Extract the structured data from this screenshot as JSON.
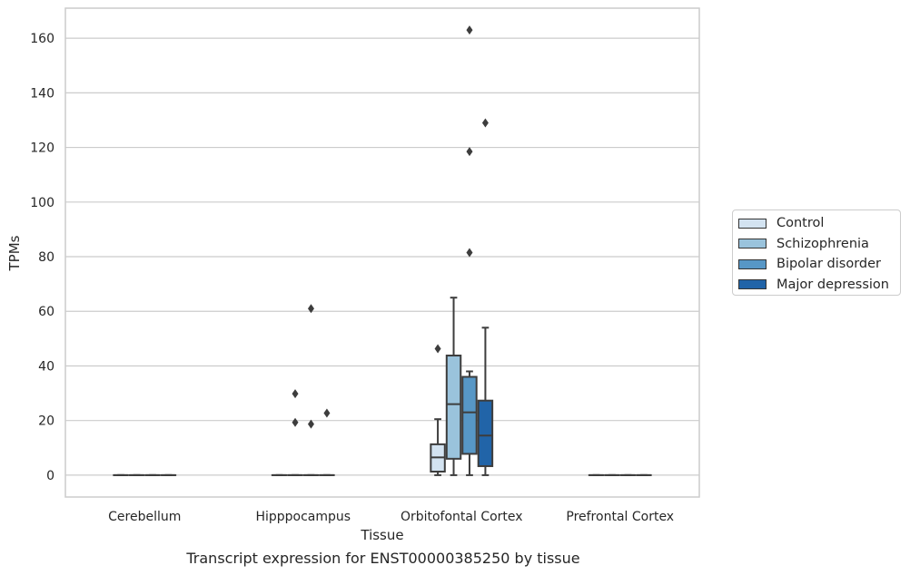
{
  "chart_data": {
    "type": "box",
    "title": "",
    "caption": "Transcript expression for ENST00000385250 by tissue",
    "xlabel": "Tissue",
    "ylabel": "TPMs",
    "ylim": [
      -8,
      171
    ],
    "yticks": [
      0,
      20,
      40,
      60,
      80,
      100,
      120,
      140,
      160
    ],
    "grid": true,
    "legend_position": "right",
    "categories": [
      "Cerebellum",
      "Hipppocampus",
      "Orbitofontal Cortex",
      "Prefrontal Cortex"
    ],
    "series": [
      {
        "name": "Control",
        "color": "#d3e3f1",
        "boxes": [
          {
            "q1": 0,
            "median": 0,
            "q3": 0,
            "whislo": 0,
            "whishi": 0,
            "fliers": []
          },
          {
            "q1": 0,
            "median": 0,
            "q3": 0,
            "whislo": 0,
            "whishi": 0,
            "fliers": []
          },
          {
            "q1": 1.3,
            "median": 6.5,
            "q3": 11.3,
            "whislo": 0,
            "whishi": 20.5,
            "fliers": [
              46.3
            ]
          },
          {
            "q1": 0,
            "median": 0,
            "q3": 0,
            "whislo": 0,
            "whishi": 0,
            "fliers": []
          }
        ]
      },
      {
        "name": "Schizophrenia",
        "color": "#9ac3dc",
        "boxes": [
          {
            "q1": 0,
            "median": 0,
            "q3": 0,
            "whislo": 0,
            "whishi": 0,
            "fliers": []
          },
          {
            "q1": 0,
            "median": 0,
            "q3": 0,
            "whislo": 0,
            "whishi": 0,
            "fliers": [
              29.8,
              19.3
            ]
          },
          {
            "q1": 6,
            "median": 26,
            "q3": 43.8,
            "whislo": 0,
            "whishi": 65,
            "fliers": []
          },
          {
            "q1": 0,
            "median": 0,
            "q3": 0,
            "whislo": 0,
            "whishi": 0,
            "fliers": []
          }
        ]
      },
      {
        "name": "Bipolar disorder",
        "color": "#5797c6",
        "boxes": [
          {
            "q1": 0,
            "median": 0,
            "q3": 0,
            "whislo": 0,
            "whishi": 0,
            "fliers": []
          },
          {
            "q1": 0,
            "median": 0,
            "q3": 0,
            "whislo": 0,
            "whishi": 0,
            "fliers": [
              61,
              18.7
            ]
          },
          {
            "q1": 7.8,
            "median": 23,
            "q3": 36,
            "whislo": 0,
            "whishi": 38,
            "fliers": [
              163,
              118.5,
              81.5
            ]
          },
          {
            "q1": 0,
            "median": 0,
            "q3": 0,
            "whislo": 0,
            "whishi": 0,
            "fliers": []
          }
        ]
      },
      {
        "name": "Major depression",
        "color": "#2164a8",
        "boxes": [
          {
            "q1": 0,
            "median": 0,
            "q3": 0,
            "whislo": 0,
            "whishi": 0,
            "fliers": []
          },
          {
            "q1": 0,
            "median": 0,
            "q3": 0,
            "whislo": 0,
            "whishi": 0,
            "fliers": [
              22.7
            ]
          },
          {
            "q1": 3.3,
            "median": 14.5,
            "q3": 27.3,
            "whislo": 0,
            "whishi": 54,
            "fliers": [
              129
            ]
          },
          {
            "q1": 0,
            "median": 0,
            "q3": 0,
            "whislo": 0,
            "whishi": 0,
            "fliers": []
          }
        ]
      }
    ]
  }
}
